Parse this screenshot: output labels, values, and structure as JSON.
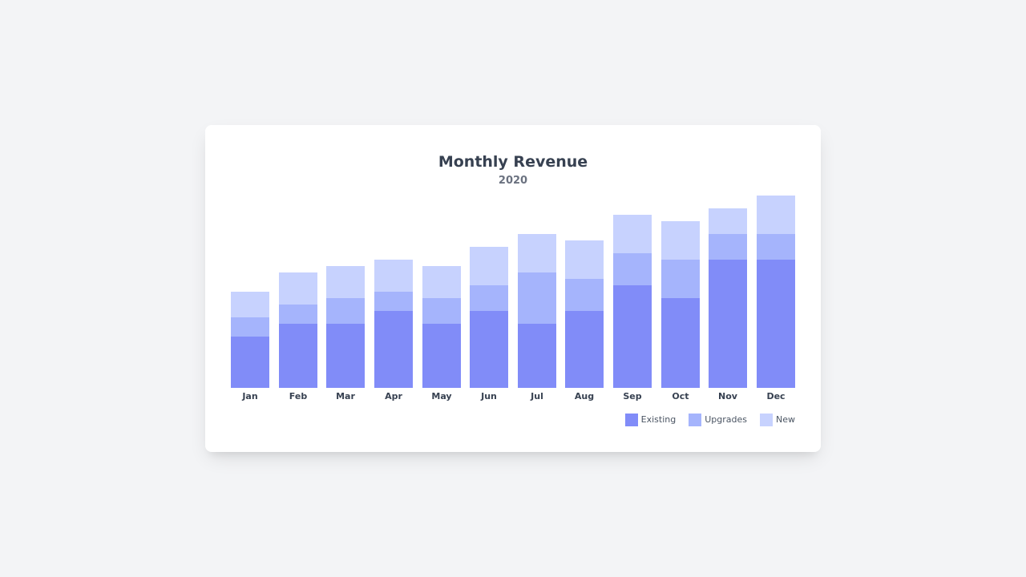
{
  "card": {
    "title": "Monthly Revenue",
    "subtitle": "2020"
  },
  "colors": {
    "Existing": "#818cf8",
    "Upgrades": "#a5b4fc",
    "New": "#c7d2fe"
  },
  "legend": [
    {
      "label": "Existing",
      "color": "#818cf8"
    },
    {
      "label": "Upgrades",
      "color": "#a5b4fc"
    },
    {
      "label": "New",
      "color": "#c7d2fe"
    }
  ],
  "chart_data": {
    "type": "bar",
    "stacked": true,
    "title": "Monthly Revenue",
    "subtitle": "2020",
    "xlabel": "",
    "ylabel": "",
    "y_axis_visible": false,
    "grid": false,
    "legend_position": "bottom-right",
    "categories": [
      "Jan",
      "Feb",
      "Mar",
      "Apr",
      "May",
      "Jun",
      "Jul",
      "Aug",
      "Sep",
      "Oct",
      "Nov",
      "Dec"
    ],
    "series": [
      {
        "name": "Existing",
        "color": "#818cf8",
        "values": [
          8,
          10,
          10,
          12,
          10,
          12,
          10,
          12,
          16,
          14,
          20,
          20
        ]
      },
      {
        "name": "Upgrades",
        "color": "#a5b4fc",
        "values": [
          3,
          3,
          4,
          3,
          4,
          4,
          8,
          5,
          5,
          6,
          4,
          4
        ]
      },
      {
        "name": "New",
        "color": "#c7d2fe",
        "values": [
          4,
          5,
          5,
          5,
          5,
          6,
          6,
          6,
          6,
          6,
          4,
          6
        ]
      }
    ],
    "ylim": [
      0,
      32
    ],
    "units_note": "relative units; y-axis not labeled"
  }
}
